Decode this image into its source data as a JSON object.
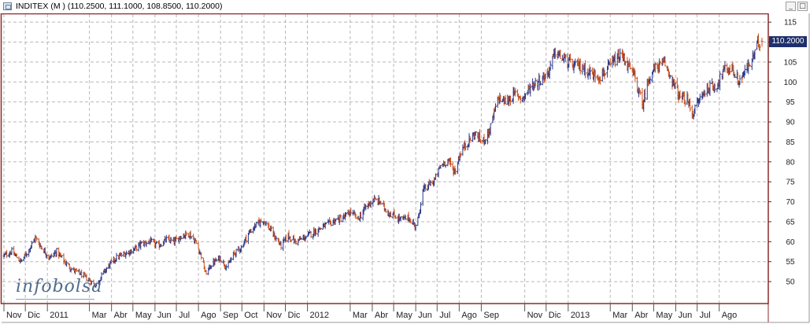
{
  "window": {
    "title": "INDITEX (M ) (110.2500, 111.1000, 108.8500, 110.2000)",
    "minimize_symbol": "_",
    "maximize_symbol": "□"
  },
  "watermark": {
    "part1": "info",
    "part2": "bolsa"
  },
  "colors": {
    "up_bar": "#2b3a8c",
    "down_bar": "#c8501e",
    "grid": "#b8b8b8",
    "frame": "#8b2a2a",
    "last_price_bg": "#1f2f6b"
  },
  "chart_data": {
    "type": "ohlc",
    "title": "INDITEX (M )",
    "last_bar": {
      "open": 110.25,
      "high": 111.1,
      "low": 108.85,
      "close": 110.2
    },
    "last_price_label": "110.2000",
    "ylim": [
      44.5,
      117
    ],
    "y_ticks": [
      50,
      55,
      60,
      65,
      70,
      75,
      80,
      85,
      90,
      95,
      100,
      105,
      110,
      115
    ],
    "grid": true,
    "x_range": [
      "2010-11-01",
      "2013-09-30"
    ],
    "x_ticks": [
      {
        "label": "Nov",
        "date": "2010-11-01"
      },
      {
        "label": "Dic",
        "date": "2010-12-01"
      },
      {
        "label": "2011",
        "date": "2011-01-01"
      },
      {
        "label": "Mar",
        "date": "2011-03-01"
      },
      {
        "label": "Abr",
        "date": "2011-04-01"
      },
      {
        "label": "May",
        "date": "2011-05-01"
      },
      {
        "label": "Jun",
        "date": "2011-06-01"
      },
      {
        "label": "Jul",
        "date": "2011-07-01"
      },
      {
        "label": "Ago",
        "date": "2011-08-01"
      },
      {
        "label": "Sep",
        "date": "2011-09-01"
      },
      {
        "label": "Oct",
        "date": "2011-10-01"
      },
      {
        "label": "Nov",
        "date": "2011-11-01"
      },
      {
        "label": "Dic",
        "date": "2011-12-01"
      },
      {
        "label": "2012",
        "date": "2012-01-01"
      },
      {
        "label": "Mar",
        "date": "2012-03-01"
      },
      {
        "label": "Abr",
        "date": "2012-04-01"
      },
      {
        "label": "May",
        "date": "2012-05-01"
      },
      {
        "label": "Jun",
        "date": "2012-06-01"
      },
      {
        "label": "Jul",
        "date": "2012-07-01"
      },
      {
        "label": "Ago",
        "date": "2012-08-01"
      },
      {
        "label": "Sep",
        "date": "2012-09-01"
      },
      {
        "label": "Nov",
        "date": "2012-11-01"
      },
      {
        "label": "Dic",
        "date": "2012-12-01"
      },
      {
        "label": "2013",
        "date": "2013-01-01"
      },
      {
        "label": "Mar",
        "date": "2013-03-01"
      },
      {
        "label": "Abr",
        "date": "2013-04-01"
      },
      {
        "label": "May",
        "date": "2013-05-01"
      },
      {
        "label": "Jun",
        "date": "2013-06-01"
      },
      {
        "label": "Jul",
        "date": "2013-07-01"
      },
      {
        "label": "Ago",
        "date": "2013-08-01"
      }
    ],
    "price_path": [
      [
        "2010-11-01",
        56.5
      ],
      [
        "2010-11-12",
        57.5
      ],
      [
        "2010-11-25",
        55.0
      ],
      [
        "2010-12-06",
        58.0
      ],
      [
        "2010-12-15",
        61.0
      ],
      [
        "2010-12-24",
        58.5
      ],
      [
        "2011-01-04",
        56.0
      ],
      [
        "2011-01-14",
        57.5
      ],
      [
        "2011-01-25",
        55.0
      ],
      [
        "2011-02-05",
        53.0
      ],
      [
        "2011-02-16",
        52.0
      ],
      [
        "2011-02-28",
        50.5
      ],
      [
        "2011-03-10",
        49.0
      ],
      [
        "2011-03-18",
        51.5
      ],
      [
        "2011-03-28",
        54.0
      ],
      [
        "2011-04-08",
        56.0
      ],
      [
        "2011-04-20",
        57.0
      ],
      [
        "2011-05-02",
        58.0
      ],
      [
        "2011-05-13",
        59.5
      ],
      [
        "2011-05-25",
        60.0
      ],
      [
        "2011-06-06",
        59.0
      ],
      [
        "2011-06-17",
        60.5
      ],
      [
        "2011-06-28",
        60.0
      ],
      [
        "2011-07-08",
        61.5
      ],
      [
        "2011-07-19",
        62.0
      ],
      [
        "2011-07-28",
        60.0
      ],
      [
        "2011-08-05",
        56.5
      ],
      [
        "2011-08-11",
        52.0
      ],
      [
        "2011-08-20",
        54.5
      ],
      [
        "2011-08-31",
        56.0
      ],
      [
        "2011-09-10",
        53.5
      ],
      [
        "2011-09-20",
        57.0
      ],
      [
        "2011-09-30",
        58.5
      ],
      [
        "2011-10-10",
        62.0
      ],
      [
        "2011-10-20",
        64.0
      ],
      [
        "2011-10-31",
        65.5
      ],
      [
        "2011-11-08",
        63.5
      ],
      [
        "2011-11-17",
        61.0
      ],
      [
        "2011-11-25",
        59.0
      ],
      [
        "2011-12-05",
        61.5
      ],
      [
        "2011-12-15",
        60.0
      ],
      [
        "2011-12-28",
        61.0
      ],
      [
        "2012-01-10",
        62.5
      ],
      [
        "2012-01-20",
        63.5
      ],
      [
        "2012-01-31",
        64.5
      ],
      [
        "2012-02-10",
        65.5
      ],
      [
        "2012-02-21",
        66.0
      ],
      [
        "2012-03-02",
        67.5
      ],
      [
        "2012-03-12",
        65.5
      ],
      [
        "2012-03-22",
        68.5
      ],
      [
        "2012-04-02",
        70.5
      ],
      [
        "2012-04-12",
        70.0
      ],
      [
        "2012-04-22",
        67.5
      ],
      [
        "2012-05-02",
        66.5
      ],
      [
        "2012-05-12",
        65.5
      ],
      [
        "2012-05-22",
        66.0
      ],
      [
        "2012-05-31",
        64.0
      ],
      [
        "2012-06-05",
        66.0
      ],
      [
        "2012-06-10",
        72.5
      ],
      [
        "2012-06-18",
        74.0
      ],
      [
        "2012-06-28",
        75.5
      ],
      [
        "2012-07-06",
        79.0
      ],
      [
        "2012-07-16",
        80.5
      ],
      [
        "2012-07-26",
        77.5
      ],
      [
        "2012-08-03",
        82.5
      ],
      [
        "2012-08-13",
        85.0
      ],
      [
        "2012-08-23",
        87.0
      ],
      [
        "2012-09-03",
        85.0
      ],
      [
        "2012-09-13",
        88.0
      ],
      [
        "2012-09-25",
        96.0
      ],
      [
        "2012-10-06",
        95.0
      ],
      [
        "2012-10-18",
        97.0
      ],
      [
        "2012-10-30",
        96.0
      ],
      [
        "2012-11-10",
        99.0
      ],
      [
        "2012-11-22",
        100.5
      ],
      [
        "2012-12-03",
        102.0
      ],
      [
        "2012-12-14",
        107.5
      ],
      [
        "2012-12-24",
        106.0
      ],
      [
        "2013-01-08",
        104.0
      ],
      [
        "2013-01-20",
        104.0
      ],
      [
        "2013-02-02",
        102.0
      ],
      [
        "2013-02-15",
        101.5
      ],
      [
        "2013-02-27",
        103.5
      ],
      [
        "2013-03-08",
        105.5
      ],
      [
        "2013-03-18",
        106.5
      ],
      [
        "2013-03-28",
        103.5
      ],
      [
        "2013-04-05",
        101.0
      ],
      [
        "2013-04-15",
        94.0
      ],
      [
        "2013-04-25",
        101.5
      ],
      [
        "2013-05-06",
        104.0
      ],
      [
        "2013-05-17",
        104.5
      ],
      [
        "2013-05-28",
        100.0
      ],
      [
        "2013-06-07",
        96.0
      ],
      [
        "2013-06-17",
        95.5
      ],
      [
        "2013-06-25",
        92.0
      ],
      [
        "2013-07-05",
        96.0
      ],
      [
        "2013-07-16",
        98.5
      ],
      [
        "2013-07-28",
        99.0
      ],
      [
        "2013-08-08",
        103.0
      ],
      [
        "2013-08-19",
        103.5
      ],
      [
        "2013-08-28",
        100.0
      ],
      [
        "2013-09-06",
        102.5
      ],
      [
        "2013-09-16",
        105.5
      ],
      [
        "2013-09-24",
        109.5
      ],
      [
        "2013-09-30",
        110.2
      ]
    ]
  }
}
